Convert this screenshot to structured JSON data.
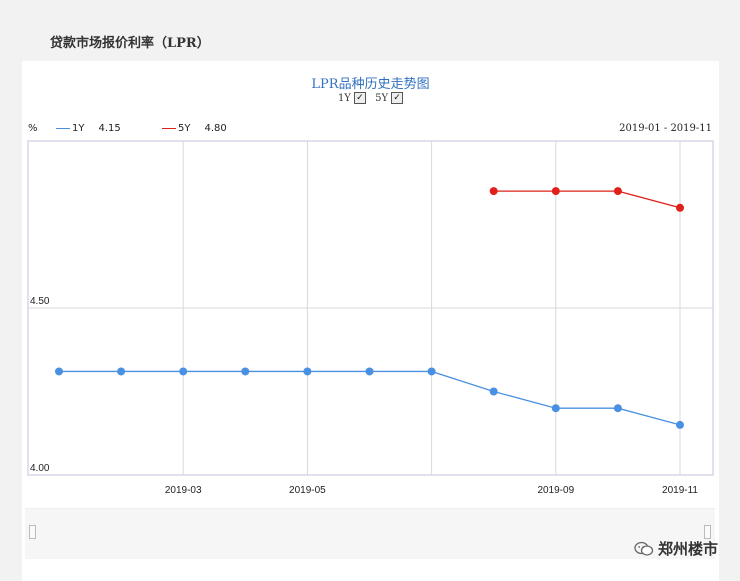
{
  "header": {
    "title": "贷款市场报价利率（LPR）"
  },
  "chart_header": {
    "title": "LPR品种历史走势图",
    "toggles": [
      {
        "label": "1Y",
        "checked": true
      },
      {
        "label": "5Y",
        "checked": true
      }
    ],
    "unit": "%",
    "range": "2019-01 - 2019-11"
  },
  "legend": [
    {
      "name": "1Y",
      "value": "4.15",
      "color": "#4a90e2"
    },
    {
      "name": "5Y",
      "value": "4.80",
      "color": "#e0201a"
    }
  ],
  "watermark": {
    "brand": "郑州楼市"
  },
  "chart_data": {
    "type": "line",
    "x": [
      "2019-01",
      "2019-02",
      "2019-03",
      "2019-04",
      "2019-05",
      "2019-06",
      "2019-07",
      "2019-08",
      "2019-09",
      "2019-10",
      "2019-11"
    ],
    "x_tick_labels": [
      "2019-03",
      "2019-05",
      "2019-09",
      "2019-11"
    ],
    "y_tick_labels": [
      "4.00",
      "4.50"
    ],
    "ylim": [
      4.0,
      5.0
    ],
    "grid": true,
    "series": [
      {
        "name": "1Y",
        "color": "#4a90e2",
        "values": [
          4.31,
          4.31,
          4.31,
          4.31,
          4.31,
          4.31,
          4.31,
          4.25,
          4.2,
          4.2,
          4.15
        ]
      },
      {
        "name": "5Y",
        "color": "#e0201a",
        "values": [
          null,
          null,
          null,
          null,
          null,
          null,
          null,
          4.85,
          4.85,
          4.85,
          4.8
        ]
      }
    ]
  }
}
